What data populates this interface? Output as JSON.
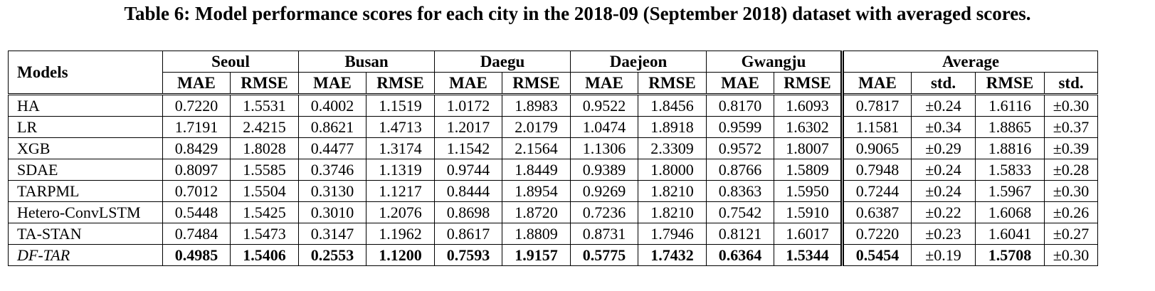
{
  "caption": "Table 6: Model performance scores for each city in the 2018-09 (September 2018) dataset with averaged scores.",
  "header": {
    "models": "Models",
    "cities": [
      "Seoul",
      "Busan",
      "Daegu",
      "Daejeon",
      "Gwangju"
    ],
    "average": "Average",
    "mae": "MAE",
    "rmse": "RMSE",
    "std": "std."
  },
  "rows": [
    {
      "model": "HA",
      "vals": [
        "0.7220",
        "1.5531",
        "0.4002",
        "1.1519",
        "1.0172",
        "1.8983",
        "0.9522",
        "1.8456",
        "0.8170",
        "1.6093"
      ],
      "avg": [
        "0.7817",
        "±0.24",
        "1.6116",
        "±0.30"
      ]
    },
    {
      "model": "LR",
      "vals": [
        "1.7191",
        "2.4215",
        "0.8621",
        "1.4713",
        "1.2017",
        "2.0179",
        "1.0474",
        "1.8918",
        "0.9599",
        "1.6302"
      ],
      "avg": [
        "1.1581",
        "±0.34",
        "1.8865",
        "±0.37"
      ]
    },
    {
      "model": "XGB",
      "vals": [
        "0.8429",
        "1.8028",
        "0.4477",
        "1.3174",
        "1.1542",
        "2.1564",
        "1.1306",
        "2.3309",
        "0.9572",
        "1.8007"
      ],
      "avg": [
        "0.9065",
        "±0.29",
        "1.8816",
        "±0.39"
      ]
    },
    {
      "model": "SDAE",
      "vals": [
        "0.8097",
        "1.5585",
        "0.3746",
        "1.1319",
        "0.9744",
        "1.8449",
        "0.9389",
        "1.8000",
        "0.8766",
        "1.5809"
      ],
      "avg": [
        "0.7948",
        "±0.24",
        "1.5833",
        "±0.28"
      ]
    },
    {
      "model": "TARPML",
      "vals": [
        "0.7012",
        "1.5504",
        "0.3130",
        "1.1217",
        "0.8444",
        "1.8954",
        "0.9269",
        "1.8210",
        "0.8363",
        "1.5950"
      ],
      "avg": [
        "0.7244",
        "±0.24",
        "1.5967",
        "±0.30"
      ]
    },
    {
      "model": "Hetero-ConvLSTM",
      "vals": [
        "0.5448",
        "1.5425",
        "0.3010",
        "1.2076",
        "0.8698",
        "1.8720",
        "0.7236",
        "1.8210",
        "0.7542",
        "1.5910"
      ],
      "avg": [
        "0.6387",
        "±0.22",
        "1.6068",
        "±0.26"
      ]
    },
    {
      "model": "TA-STAN",
      "vals": [
        "0.7484",
        "1.5473",
        "0.3147",
        "1.1962",
        "0.8617",
        "1.8809",
        "0.8731",
        "1.7946",
        "0.8121",
        "1.6017"
      ],
      "avg": [
        "0.7220",
        "±0.23",
        "1.6041",
        "±0.27"
      ]
    },
    {
      "model": "DF-TAR",
      "vals": [
        "0.4985",
        "1.5406",
        "0.2553",
        "1.1200",
        "0.7593",
        "1.9157",
        "0.5775",
        "1.7432",
        "0.6364",
        "1.5344"
      ],
      "avg": [
        "0.5454",
        "±0.19",
        "1.5708",
        "±0.30"
      ]
    }
  ]
}
